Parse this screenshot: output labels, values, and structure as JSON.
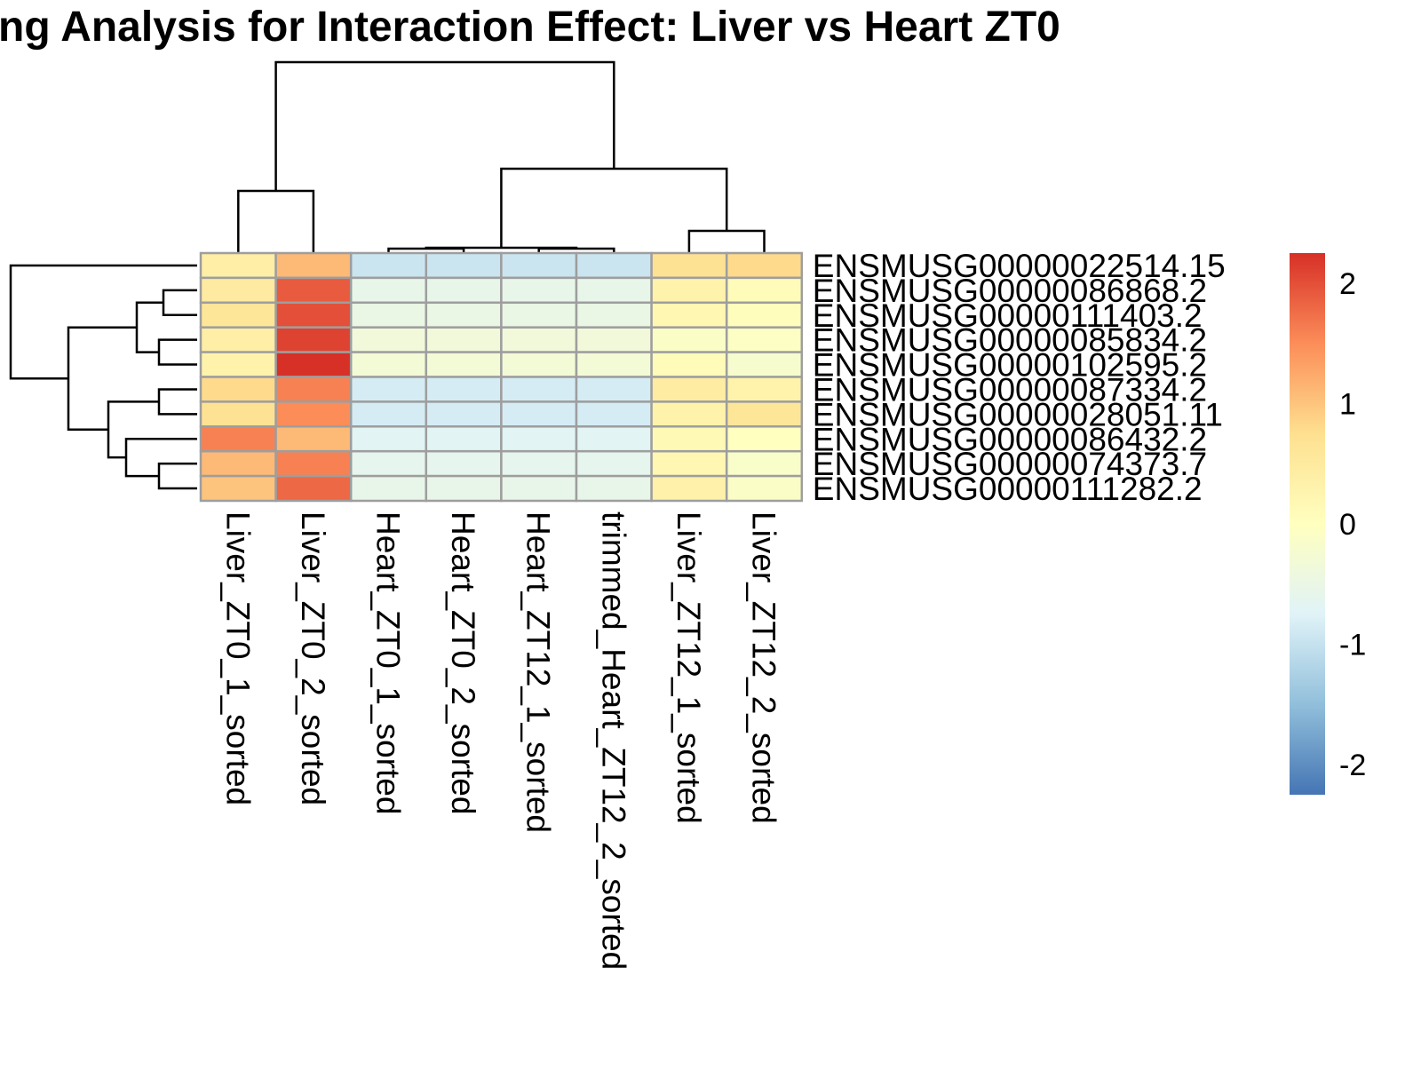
{
  "chart_data": {
    "type": "heatmap",
    "title": "ng Analysis for Interaction Effect: Liver vs Heart ZT0",
    "columns": [
      "Liver_ZT0_1_sorted",
      "Liver_ZT0_2_sorted",
      "Heart_ZT0_1_sorted",
      "Heart_ZT0_2_sorted",
      "Heart_ZT12_1_sorted",
      "trimmed_Heart_ZT12_2_sorted",
      "Liver_ZT12_1_sorted",
      "Liver_ZT12_2_sorted"
    ],
    "rows": [
      "ENSMUSG00000022514.15",
      "ENSMUSG00000086868.2",
      "ENSMUSG00000111403.2",
      "ENSMUSG00000085834.2",
      "ENSMUSG00000102595.2",
      "ENSMUSG00000087334.2",
      "ENSMUSG00000028051.11",
      "ENSMUSG00000086432.2",
      "ENSMUSG00000074373.7",
      "ENSMUSG00000111282.2"
    ],
    "values": [
      [
        0.4,
        1.1,
        -0.95,
        -0.95,
        -0.95,
        -0.95,
        0.7,
        0.8
      ],
      [
        0.5,
        1.9,
        -0.55,
        -0.55,
        -0.55,
        -0.55,
        0.3,
        0.1
      ],
      [
        0.6,
        2.0,
        -0.5,
        -0.5,
        -0.5,
        -0.5,
        0.2,
        0.05
      ],
      [
        0.4,
        2.1,
        -0.35,
        -0.35,
        -0.35,
        -0.35,
        -0.1,
        -0.05
      ],
      [
        0.3,
        2.25,
        -0.3,
        -0.3,
        -0.3,
        -0.3,
        0.1,
        -0.2
      ],
      [
        0.8,
        1.6,
        -0.85,
        -0.85,
        -0.85,
        -0.85,
        0.45,
        0.3
      ],
      [
        0.7,
        1.5,
        -0.85,
        -0.85,
        -0.85,
        -0.85,
        0.3,
        0.6
      ],
      [
        1.6,
        1.1,
        -0.7,
        -0.7,
        -0.7,
        -0.7,
        0.15,
        0.0
      ],
      [
        1.1,
        1.6,
        -0.6,
        -0.6,
        -0.6,
        -0.6,
        0.2,
        -0.15
      ],
      [
        1.0,
        1.8,
        -0.55,
        -0.55,
        -0.55,
        -0.55,
        0.35,
        -0.1
      ]
    ],
    "color_scale": {
      "min": -2.25,
      "max": 2.25,
      "colors": [
        "#4575b4",
        "#91bfdb",
        "#e0f3f8",
        "#ffffbf",
        "#fee090",
        "#fc8d59",
        "#d73027"
      ]
    },
    "legend": {
      "position": "right",
      "ticks": [
        2,
        1,
        0,
        -1,
        -2
      ],
      "tick_labels": [
        "2",
        "1",
        "0",
        "-1",
        "-2"
      ]
    },
    "column_dendrogram": {
      "merges": [
        [
          -1,
          -2
        ],
        [
          -7,
          -8
        ],
        [
          -3,
          -4
        ],
        [
          -5,
          -6
        ],
        [
          3,
          4
        ],
        [
          2,
          5
        ],
        [
          1,
          6
        ]
      ],
      "heights": [
        0.7,
        0.25,
        0.05,
        0.05,
        0.06,
        0.95,
        2.15
      ]
    },
    "row_dendrogram": {
      "merges": [
        [
          -2,
          -3
        ],
        [
          -4,
          -5
        ],
        [
          -6,
          -7
        ],
        [
          -9,
          -10
        ],
        [
          1,
          2
        ],
        [
          -8,
          4
        ],
        [
          3,
          6
        ],
        [
          5,
          7
        ],
        [
          -1,
          8
        ]
      ],
      "heights": [
        0.38,
        0.43,
        0.43,
        0.43,
        0.68,
        0.8,
        1.0,
        1.45,
        2.1
      ]
    }
  }
}
